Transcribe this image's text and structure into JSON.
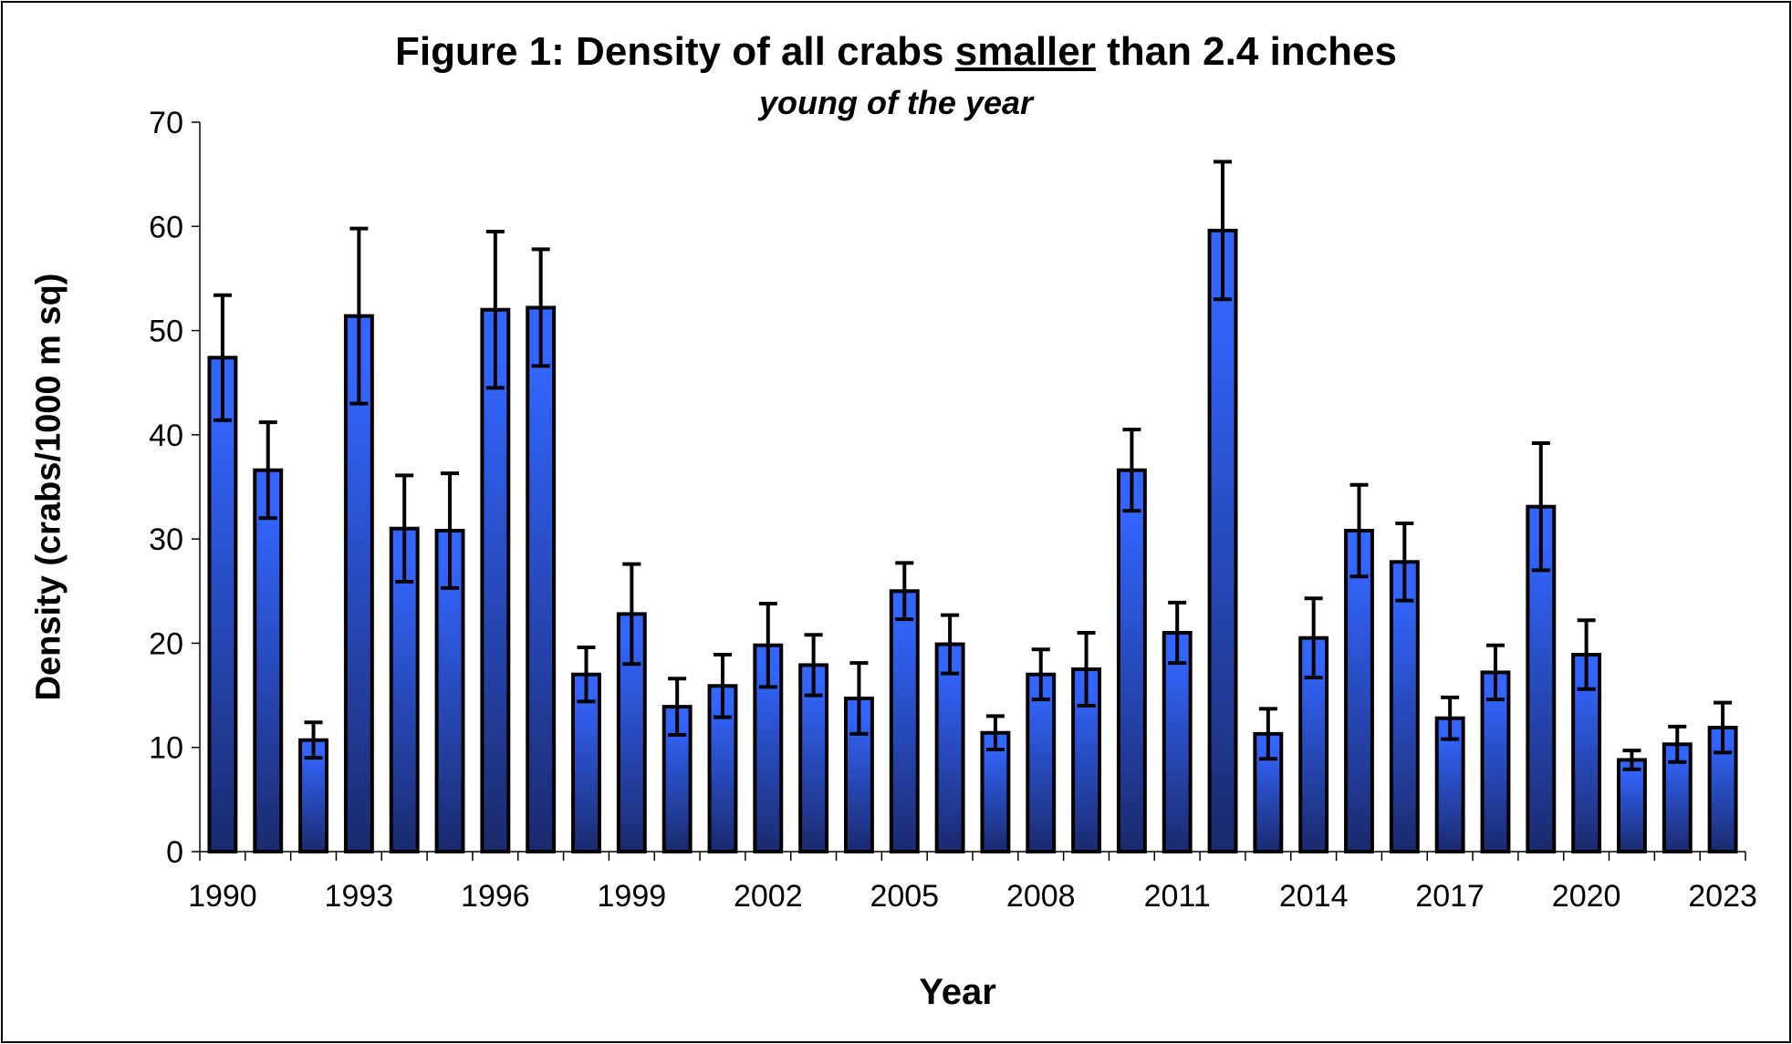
{
  "chart_data": {
    "type": "bar",
    "title_parts": [
      "Figure 1: Density of all crabs ",
      "smaller",
      " than 2.4 inches"
    ],
    "subtitle": "young of the year",
    "xlabel": "Year",
    "ylabel": "Density (crabs/1000 m sq)",
    "ylim": [
      0,
      70
    ],
    "yticks": [
      0,
      10,
      20,
      30,
      40,
      50,
      60,
      70
    ],
    "xtick_labels": [
      "1990",
      "1993",
      "1996",
      "1999",
      "2002",
      "2005",
      "2008",
      "2011",
      "2014",
      "2017",
      "2020",
      "2023"
    ],
    "categories": [
      "1990",
      "1991",
      "1992",
      "1993",
      "1994",
      "1995",
      "1996",
      "1997",
      "1998",
      "1999",
      "2000",
      "2001",
      "2002",
      "2003",
      "2004",
      "2005",
      "2006",
      "2007",
      "2008",
      "2009",
      "2010",
      "2011",
      "2012",
      "2013",
      "2014",
      "2015",
      "2016",
      "2017",
      "2018",
      "2019",
      "2020",
      "2021",
      "2022",
      "2023"
    ],
    "values": [
      47.4,
      36.6,
      10.7,
      51.4,
      31.0,
      30.8,
      52.0,
      52.2,
      17.0,
      22.8,
      13.9,
      15.9,
      19.8,
      17.9,
      14.7,
      25.0,
      19.9,
      11.4,
      17.0,
      17.5,
      36.6,
      21.0,
      59.6,
      11.3,
      20.5,
      30.8,
      27.8,
      12.8,
      17.2,
      33.1,
      18.9,
      8.8,
      10.3,
      11.9
    ],
    "error": [
      6.0,
      4.6,
      1.7,
      8.4,
      5.1,
      5.5,
      7.5,
      5.6,
      2.6,
      4.8,
      2.7,
      3.0,
      4.0,
      2.9,
      3.4,
      2.7,
      2.8,
      1.6,
      2.4,
      3.5,
      3.9,
      2.9,
      6.6,
      2.4,
      3.8,
      4.4,
      3.7,
      2.0,
      2.6,
      6.1,
      3.3,
      0.9,
      1.7,
      2.4
    ],
    "colors": {
      "bar_top": "#3366ff",
      "bar_bottom": "#1a2a6e",
      "outline": "#000000"
    },
    "grid": false,
    "legend": "none"
  }
}
